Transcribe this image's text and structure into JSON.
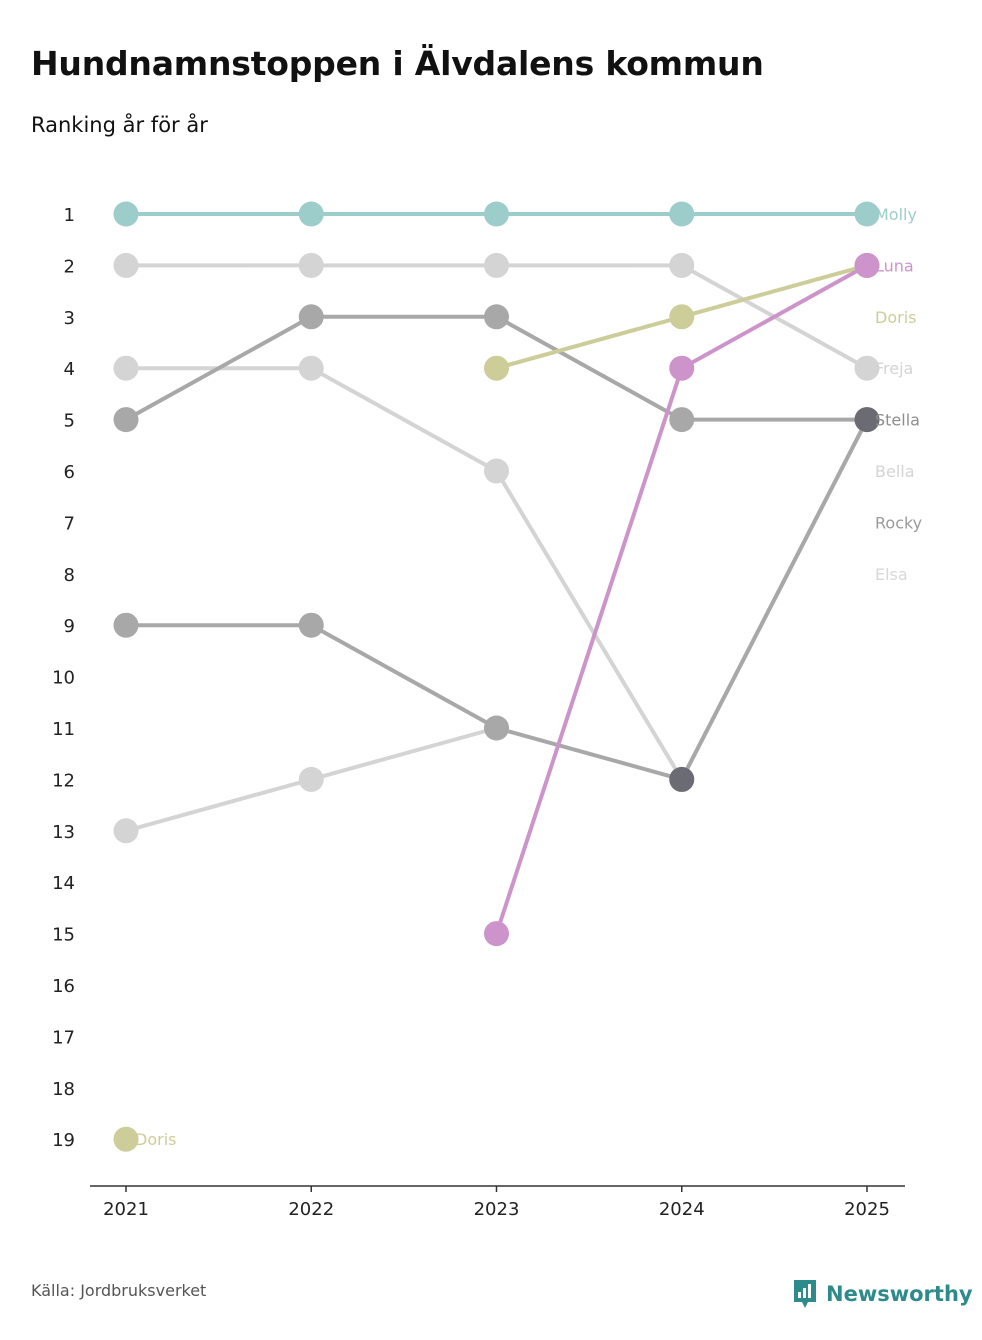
{
  "header": {
    "title": "Hundnamnstoppen i Älvdalens kommun",
    "subtitle": "Ranking år för år"
  },
  "footer": {
    "source": "Källa: Jordbruksverket",
    "brand": "Newsworthy"
  },
  "colors": {
    "molly": "#9ccdcb",
    "luna": "#cc94cb",
    "doris": "#cdcd99",
    "freja": "#d4d4d4",
    "stella": "#a8a8a8",
    "stella_highlight": "#6b6b73",
    "bella": "#d4d4d4",
    "rocky": "#a8a8a8",
    "elsa": "#d4d4d4",
    "brand": "#2e8b8b"
  },
  "chart_data": {
    "type": "line",
    "x": [
      "2021",
      "2022",
      "2023",
      "2024",
      "2025"
    ],
    "y_ticks": [
      1,
      2,
      3,
      4,
      5,
      6,
      7,
      8,
      9,
      10,
      11,
      12,
      13,
      14,
      15,
      16,
      17,
      18,
      19
    ],
    "ylim": [
      1,
      19
    ],
    "y_reversed": true,
    "legend": "right-end labels",
    "series": [
      {
        "name": "Molly",
        "values": [
          1,
          1,
          1,
          1,
          1
        ],
        "color": "#9ccdcb"
      },
      {
        "name": "Luna",
        "values": [
          null,
          null,
          15,
          4,
          2
        ],
        "color": "#cc94cb"
      },
      {
        "name": "Doris",
        "values": [
          19,
          null,
          4,
          3,
          2
        ],
        "color": "#cdcd99",
        "extra_label": "Doris"
      },
      {
        "name": "Freja",
        "values": [
          2,
          2,
          2,
          2,
          4
        ],
        "color": "#d4d4d4"
      },
      {
        "name": "Stella",
        "values": [
          9,
          9,
          11,
          12,
          5
        ],
        "color": "#a8a8a8"
      },
      {
        "name": "Bella",
        "values": [
          4,
          4,
          6,
          12,
          5
        ],
        "color": "#d4d4d4"
      },
      {
        "name": "Rocky",
        "values": [
          5,
          3,
          3,
          5,
          5
        ],
        "color": "#a8a8a8"
      },
      {
        "name": "Elsa",
        "values": [
          13,
          12,
          11,
          null,
          null
        ],
        "color": "#d4d4d4"
      }
    ]
  }
}
